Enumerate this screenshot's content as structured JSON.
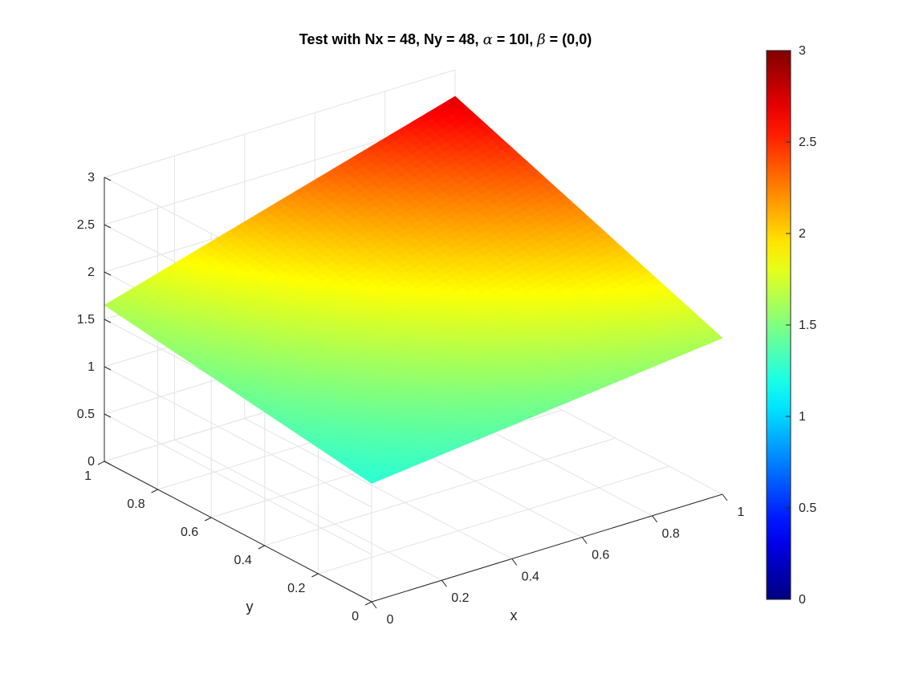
{
  "chart_data": {
    "type": "surface",
    "title": {
      "prefix": "Test with Nx = 48, Ny = 48, ",
      "alpha_symbol": "α",
      "alpha_rest": " = 10I, ",
      "beta_symbol": "β",
      "beta_rest": " = (0,0)"
    },
    "xlabel": "x",
    "ylabel": "y",
    "zlabel": "",
    "xlim": [
      0,
      1
    ],
    "ylim": [
      0,
      1
    ],
    "zlim": [
      0,
      3
    ],
    "grid": true,
    "colormap": "jet",
    "color_limits": [
      0,
      3
    ],
    "grid_size": 48,
    "corner_values": {
      "x0y0": 1.25,
      "x1y0": 1.65,
      "x0y1": 1.65,
      "x1y1": 2.72
    },
    "x_ticks": [
      "0",
      "0.2",
      "0.4",
      "0.6",
      "0.8",
      "1"
    ],
    "y_ticks": [
      "0",
      "0.2",
      "0.4",
      "0.6",
      "0.8",
      "1"
    ],
    "z_ticks": [
      "0",
      "0.5",
      "1",
      "1.5",
      "2",
      "2.5",
      "3"
    ],
    "colorbar_ticks": [
      "0",
      "0.5",
      "1",
      "1.5",
      "2",
      "2.5",
      "3"
    ]
  }
}
